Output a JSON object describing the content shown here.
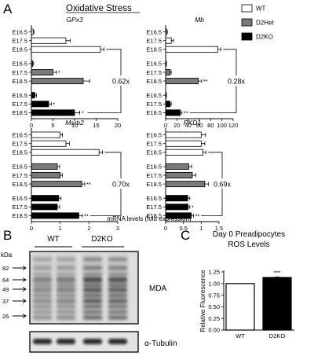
{
  "panels": {
    "a": "A",
    "b": "B",
    "c": "C"
  },
  "panel_a": {
    "title": "Oxidative Stress",
    "x_axis_label": "mRNA levels (fold expression)",
    "legend": [
      {
        "label": "WT",
        "color": "#ffffff"
      },
      {
        "label": "D2Het",
        "color": "#7a7a7a"
      },
      {
        "label": "D2KO",
        "color": "#000000"
      }
    ]
  },
  "chart_data": [
    {
      "type": "bar",
      "orientation": "horizontal",
      "title": "GPx3",
      "categories": [
        "E16.5",
        "E17.5",
        "E18.5"
      ],
      "series": [
        {
          "name": "WT",
          "values": [
            0.4,
            8,
            16
          ],
          "errors": [
            0.2,
            1,
            0.8
          ]
        },
        {
          "name": "D2Het",
          "values": [
            0.3,
            5,
            12
          ],
          "errors": [
            0.2,
            0.8,
            1.5
          ]
        },
        {
          "name": "D2KO",
          "values": [
            0.8,
            4,
            10
          ],
          "errors": [
            0.4,
            0.6,
            1.2
          ]
        }
      ],
      "xlim": [
        0,
        20
      ],
      "xticks": [
        0,
        5,
        10,
        15,
        20
      ],
      "fold_change": "0.62x",
      "marks": [
        {
          "series": "D2Het",
          "index": 1,
          "text": "*"
        },
        {
          "series": "D2KO",
          "index": 1,
          "text": "*"
        },
        {
          "series": "D2KO",
          "index": 2,
          "text": "*"
        }
      ]
    },
    {
      "type": "bar",
      "orientation": "horizontal",
      "title": "Mb",
      "categories": [
        "E16.5",
        "E17.5",
        "E18.5"
      ],
      "series": [
        {
          "name": "WT",
          "values": [
            2,
            10,
            93
          ],
          "errors": [
            1,
            4,
            5
          ]
        },
        {
          "name": "D2Het",
          "values": [
            1,
            8,
            58
          ],
          "errors": [
            0.5,
            2,
            6
          ]
        },
        {
          "name": "D2KO",
          "values": [
            1,
            8,
            26
          ],
          "errors": [
            0.5,
            2,
            3
          ]
        }
      ],
      "xlim": [
        0,
        120
      ],
      "xticks": [
        0,
        20,
        40,
        60,
        80,
        100,
        120
      ],
      "fold_change": "0.28x",
      "marks": [
        {
          "series": "D2Het",
          "index": 2,
          "text": "**"
        },
        {
          "series": "D2KO",
          "index": 2,
          "text": "**"
        }
      ]
    },
    {
      "type": "bar",
      "orientation": "horizontal",
      "title": "Msrb2",
      "categories": [
        "E16.5",
        "E17.5",
        "E18.5"
      ],
      "series": [
        {
          "name": "WT",
          "values": [
            1.0,
            1.2,
            2.35
          ],
          "errors": [
            0.08,
            0.12,
            0.12
          ]
        },
        {
          "name": "D2Het",
          "values": [
            0.9,
            1.0,
            1.75
          ],
          "errors": [
            0.08,
            0.08,
            0.1
          ]
        },
        {
          "name": "D2KO",
          "values": [
            0.95,
            0.9,
            1.65
          ],
          "errors": [
            0.08,
            0.08,
            0.12
          ]
        }
      ],
      "xlim": [
        0,
        3
      ],
      "xticks": [
        0,
        1,
        2,
        3
      ],
      "fold_change": "0.70x",
      "marks": [
        {
          "series": "D2Het",
          "index": 2,
          "text": "**"
        },
        {
          "series": "D2KO",
          "index": 2,
          "text": "**"
        }
      ]
    },
    {
      "type": "bar",
      "orientation": "horizontal",
      "title": "PKD1",
      "categories": [
        "E16.5",
        "E17.5",
        "E18.5"
      ],
      "series": [
        {
          "name": "WT",
          "values": [
            1.0,
            1.0,
            1.05
          ],
          "errors": [
            0.12,
            0.1,
            0.08
          ]
        },
        {
          "name": "D2Het",
          "values": [
            0.65,
            0.75,
            1.1
          ],
          "errors": [
            0.08,
            0.1,
            0.1
          ]
        },
        {
          "name": "D2KO",
          "values": [
            0.62,
            0.63,
            0.72
          ],
          "errors": [
            0.06,
            0.05,
            0.06
          ]
        }
      ],
      "xlim": [
        0,
        1.5
      ],
      "xticks": [
        0.0,
        0.5,
        1.0,
        1.5
      ],
      "fold_change": "0.69x",
      "marks": [
        {
          "series": "D2KO",
          "index": 1,
          "text": "*"
        },
        {
          "series": "D2KO",
          "index": 2,
          "text": "**"
        }
      ]
    },
    {
      "type": "bar",
      "title": "Day 0 Preadipocytes ROS Levels",
      "categories": [
        "WT",
        "D2KO"
      ],
      "values": [
        1.0,
        1.13
      ],
      "errors": [
        0,
        0.01
      ],
      "colors": [
        "#ffffff",
        "#000000"
      ],
      "ylabel": "Relative Fluorescence",
      "ylim": [
        0,
        1.25
      ],
      "yticks": [
        "0.00",
        "0.25",
        "0.50",
        "0.75",
        "1.00",
        "1.25"
      ],
      "significance": "***"
    }
  ],
  "panel_b": {
    "kda_label": "kDa",
    "markers": [
      "82",
      "64",
      "49",
      "37",
      "26"
    ],
    "groups": [
      "WT",
      "D2KO"
    ],
    "blot_labels": [
      "MDA",
      "α-Tubulin"
    ]
  },
  "panel_c": {
    "title_line1": "Day 0 Preadipocytes",
    "title_line2": "ROS Levels"
  }
}
